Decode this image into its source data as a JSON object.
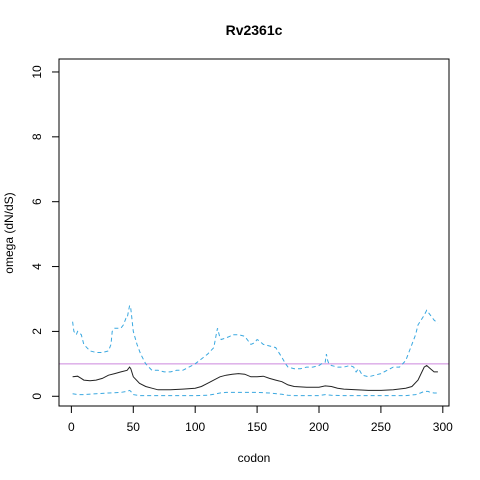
{
  "chart_data": {
    "type": "line",
    "title": "Rv2361c",
    "xlabel": "codon",
    "ylabel": "omega (dN/dS)",
    "xlim": [
      -10,
      305
    ],
    "ylim": [
      -0.3,
      10.4
    ],
    "xticks": [
      0,
      50,
      100,
      150,
      200,
      250,
      300
    ],
    "yticks": [
      0,
      2,
      4,
      6,
      8,
      10
    ],
    "reference_line": {
      "y": 1,
      "color": "#cc88dd"
    },
    "series": [
      {
        "style": "dashed",
        "color": "#3aa8e0",
        "x": [
          1,
          2,
          4,
          5,
          8,
          10,
          15,
          20,
          25,
          30,
          32,
          33,
          35,
          40,
          42,
          44,
          45,
          47,
          48,
          50,
          53,
          56,
          60,
          65,
          70,
          75,
          80,
          85,
          90,
          95,
          100,
          105,
          110,
          115,
          117,
          118,
          120,
          121,
          125,
          128,
          130,
          135,
          140,
          145,
          148,
          150,
          152,
          155,
          160,
          165,
          170,
          173,
          175,
          180,
          185,
          190,
          195,
          200,
          202,
          205,
          206,
          207,
          208,
          210,
          215,
          220,
          225,
          228,
          230,
          232,
          235,
          240,
          245,
          250,
          255,
          260,
          265,
          270,
          275,
          278,
          280,
          285,
          287,
          290,
          293,
          296
        ],
        "y": [
          2.3,
          2.0,
          1.9,
          2.0,
          1.9,
          1.6,
          1.4,
          1.35,
          1.35,
          1.4,
          1.6,
          2.0,
          2.1,
          2.1,
          2.2,
          2.4,
          2.4,
          2.8,
          2.7,
          2.0,
          1.6,
          1.3,
          1.0,
          0.8,
          0.8,
          0.75,
          0.75,
          0.8,
          0.8,
          0.9,
          1.0,
          1.15,
          1.3,
          1.5,
          1.9,
          2.1,
          1.8,
          1.75,
          1.8,
          1.85,
          1.9,
          1.9,
          1.85,
          1.6,
          1.65,
          1.75,
          1.7,
          1.6,
          1.55,
          1.5,
          1.2,
          1.0,
          0.9,
          0.85,
          0.85,
          0.9,
          0.9,
          0.95,
          1.0,
          1.05,
          1.3,
          1.1,
          1.0,
          0.95,
          0.9,
          0.9,
          0.95,
          0.9,
          0.75,
          0.85,
          0.65,
          0.6,
          0.65,
          0.7,
          0.8,
          0.9,
          0.9,
          1.1,
          1.6,
          1.9,
          2.2,
          2.5,
          2.65,
          2.5,
          2.35,
          2.25
        ]
      },
      {
        "style": "solid",
        "color": "#222222",
        "x": [
          1,
          5,
          8,
          10,
          15,
          20,
          25,
          30,
          35,
          40,
          45,
          47,
          48,
          50,
          55,
          60,
          65,
          70,
          80,
          90,
          100,
          105,
          110,
          115,
          120,
          125,
          130,
          135,
          140,
          145,
          150,
          155,
          160,
          165,
          170,
          175,
          180,
          190,
          200,
          205,
          210,
          215,
          220,
          230,
          240,
          250,
          260,
          270,
          275,
          280,
          285,
          287,
          290,
          293,
          296
        ],
        "y": [
          0.6,
          0.62,
          0.55,
          0.5,
          0.48,
          0.5,
          0.55,
          0.65,
          0.7,
          0.75,
          0.8,
          0.9,
          0.85,
          0.6,
          0.4,
          0.3,
          0.25,
          0.2,
          0.2,
          0.22,
          0.25,
          0.3,
          0.4,
          0.5,
          0.6,
          0.65,
          0.68,
          0.7,
          0.68,
          0.6,
          0.6,
          0.62,
          0.55,
          0.5,
          0.45,
          0.35,
          0.3,
          0.28,
          0.28,
          0.32,
          0.3,
          0.25,
          0.22,
          0.2,
          0.18,
          0.18,
          0.2,
          0.25,
          0.3,
          0.5,
          0.9,
          0.95,
          0.85,
          0.75,
          0.75
        ]
      },
      {
        "style": "dashed",
        "color": "#3aa8e0",
        "x": [
          1,
          5,
          10,
          20,
          30,
          40,
          45,
          47,
          48,
          50,
          55,
          60,
          70,
          80,
          100,
          110,
          115,
          120,
          125,
          130,
          140,
          150,
          160,
          170,
          175,
          180,
          200,
          205,
          210,
          220,
          230,
          250,
          270,
          278,
          282,
          285,
          288,
          290,
          293,
          296
        ],
        "y": [
          0.08,
          0.05,
          0.05,
          0.08,
          0.1,
          0.12,
          0.15,
          0.18,
          0.15,
          0.05,
          0.02,
          0.02,
          0.02,
          0.02,
          0.02,
          0.03,
          0.06,
          0.1,
          0.12,
          0.12,
          0.12,
          0.12,
          0.1,
          0.06,
          0.03,
          0.02,
          0.02,
          0.05,
          0.03,
          0.02,
          0.02,
          0.02,
          0.02,
          0.05,
          0.1,
          0.15,
          0.15,
          0.12,
          0.1,
          0.1
        ]
      }
    ]
  }
}
